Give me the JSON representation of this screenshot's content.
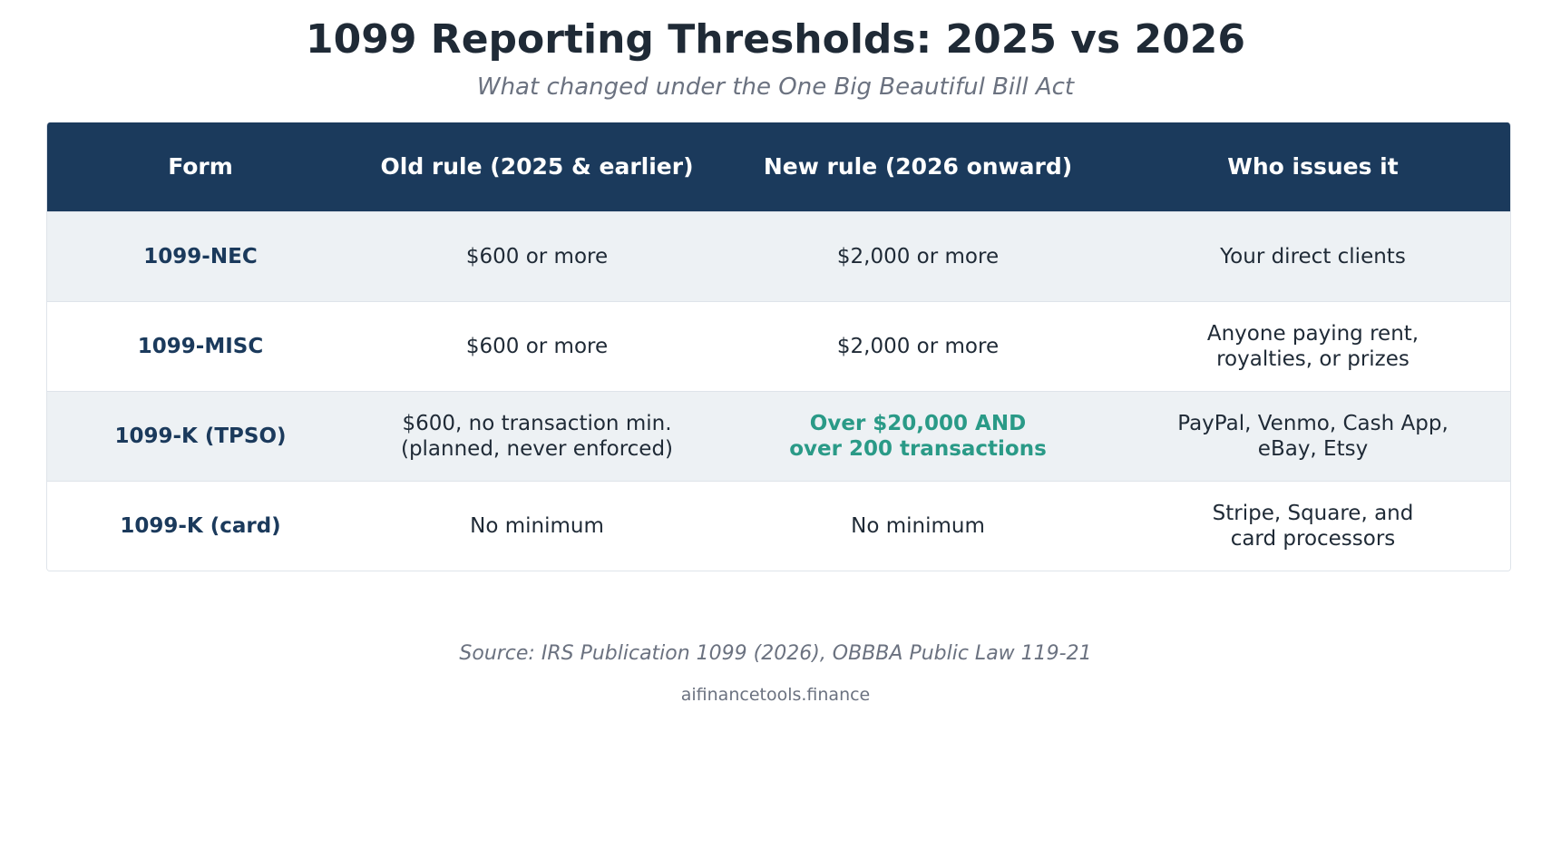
{
  "title": "1099 Reporting Thresholds: 2025 vs 2026",
  "subtitle": "What changed under the One Big Beautiful Bill Act",
  "table": {
    "headers": [
      "Form",
      "Old rule (2025 & earlier)",
      "New rule (2026 onward)",
      "Who issues it"
    ],
    "rows": [
      {
        "form": "1099-NEC",
        "old_rule": "$600 or more",
        "new_rule": "$2,000 or more",
        "issuer": "Your direct clients"
      },
      {
        "form": "1099-MISC",
        "old_rule": "$600 or more",
        "new_rule": "$2,000 or more",
        "issuer": "Anyone paying rent,\nroyalties, or prizes"
      },
      {
        "form": "1099-K (TPSO)",
        "old_rule": "$600, no transaction min.\n(planned, never enforced)",
        "new_rule": "Over $20,000 AND\nover 200 transactions",
        "issuer": "PayPal, Venmo, Cash App,\neBay, Etsy"
      },
      {
        "form": "1099-K (card)",
        "old_rule": "No minimum",
        "new_rule": "No minimum",
        "issuer": "Stripe, Square, and\ncard processors"
      }
    ]
  },
  "source": "Source: IRS Publication 1099 (2026), OBBBA Public Law 119-21",
  "site": "aifinancetools.finance",
  "colors": {
    "header_bg": "#1b3a5c",
    "row_shade": "#edf1f4",
    "highlight": "#2a9a87",
    "form_text": "#1b3a5c"
  }
}
